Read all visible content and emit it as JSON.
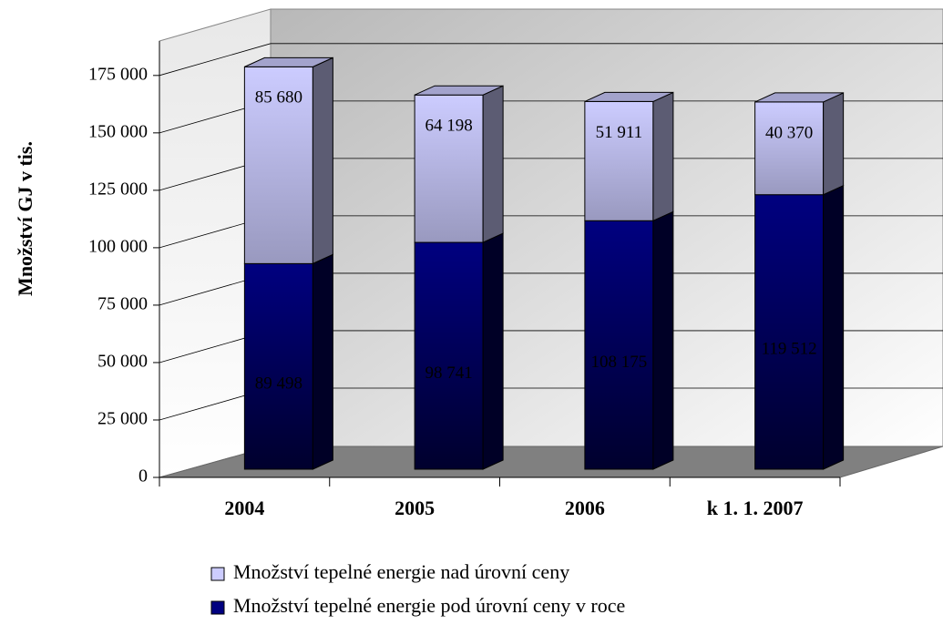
{
  "chart_data": {
    "type": "bar3d_stacked",
    "y_axis_label": "Množství GJ v tis.",
    "categories": [
      "2004",
      "2005",
      "2006",
      "k 1. 1. 2007"
    ],
    "series": [
      {
        "name": "Množství tepelné energie pod úrovní ceny v roce",
        "color": "#000080",
        "values": [
          89498,
          98741,
          108175,
          119512
        ],
        "value_labels": [
          "89 498",
          "98 741",
          "108 175",
          "119 512"
        ]
      },
      {
        "name": "Množství tepelné energie nad úrovní ceny",
        "color": "#ccccff",
        "values": [
          85680,
          64198,
          51911,
          40370
        ],
        "value_labels": [
          "85 680",
          "64 198",
          "51 911",
          "40 370"
        ]
      }
    ],
    "ylim": [
      0,
      190000
    ],
    "yticks": [
      0,
      {
        "value": 25000,
        "label": "25 000"
      },
      {
        "value": 50000,
        "label": "50 000"
      },
      {
        "value": 75000,
        "label": "75 000"
      },
      {
        "value": 100000,
        "label": "100 000"
      },
      {
        "value": 125000,
        "label": "125 000"
      },
      {
        "value": 150000,
        "label": "150 000"
      },
      {
        "value": 175000,
        "label": "175 000"
      }
    ],
    "grid": true
  }
}
